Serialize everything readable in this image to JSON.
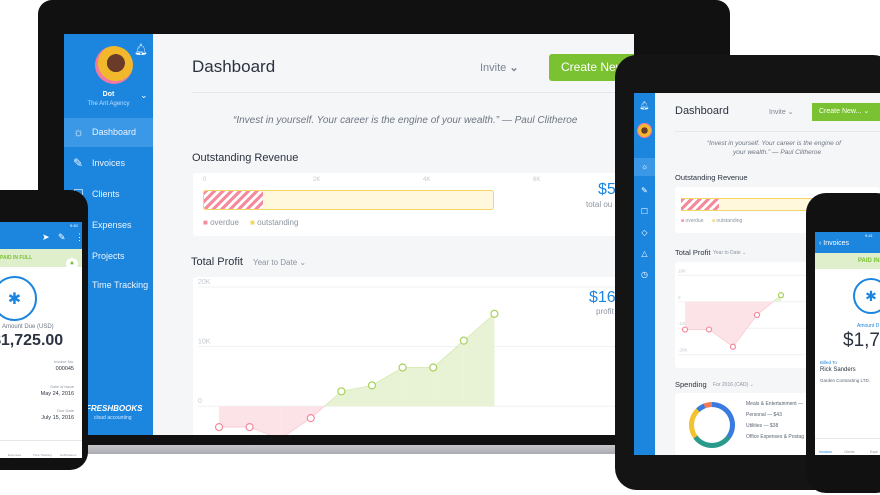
{
  "laptop": {
    "user": {
      "name": "Dot",
      "company": "The Ant Agency"
    },
    "sidebar": [
      {
        "label": "Dashboard",
        "icon": "sun-icon",
        "active": true
      },
      {
        "label": "Invoices",
        "icon": "invoice-icon"
      },
      {
        "label": "Clients",
        "icon": "clients-icon"
      },
      {
        "label": "Expenses",
        "icon": "expenses-icon"
      },
      {
        "label": "Projects",
        "icon": "projects-icon"
      },
      {
        "label": "Time Tracking",
        "icon": "timer-icon"
      }
    ],
    "logo": {
      "name": "FRESHBOOKS",
      "tagline": "cloud accounting"
    },
    "header": {
      "title": "Dashboard",
      "invite": "Invite",
      "create": "Create New"
    },
    "quote": "“Invest in yourself. Your career is the engine of your wealth.” — Paul Clitheroe",
    "revenue": {
      "title": "Outstanding Revenue",
      "ticks": [
        "0",
        "2K",
        "4K",
        "6K"
      ],
      "amount": "$5",
      "caption": "total ou",
      "legend": [
        "overdue",
        "outstanding"
      ],
      "overdue_k": 1.1,
      "outstanding_k": 5.3
    },
    "profit": {
      "title": "Total Profit",
      "range": "Year to Date",
      "amount": "$16",
      "caption": "profit"
    }
  },
  "chart_data": [
    {
      "type": "area",
      "title": "Total Profit",
      "yticks": [
        "20K",
        "10K",
        "0"
      ],
      "ylim": [
        -6,
        20
      ],
      "values": [
        -3.5,
        -3.5,
        -5.5,
        -2,
        2.5,
        3.5,
        6.5,
        6.5,
        11,
        15.5
      ],
      "colors": {
        "negative": "#f58a9c",
        "positive": "#a6d15a"
      }
    },
    {
      "type": "area",
      "title": "Total Profit",
      "yticks": [
        "10K",
        "0",
        "-10K",
        "-20K"
      ],
      "ylim": [
        -22,
        12
      ],
      "values": [
        -10.5,
        -10.5,
        -17,
        -5,
        2.5
      ],
      "colors": {
        "negative": "#f58a9c",
        "positive": "#a6d15a"
      }
    }
  ],
  "tablet": {
    "header": {
      "title": "Dashboard",
      "invite": "Invite",
      "create": "Create New..."
    },
    "quote": [
      "“Invest in yourself. Your career is the engine of",
      "your wealth.” — Paul Clitheroe"
    ],
    "revenue": {
      "title": "Outstanding Revenue",
      "legend": [
        "overdue",
        "outstanding"
      ]
    },
    "profit": {
      "title": "Total Profit",
      "range": "Year to Date"
    },
    "spending": {
      "title": "Spending",
      "range": "For 2016 (CAD)",
      "items": [
        "Meals & Entertainment —",
        "Personal — $43",
        "Utilities — $38",
        "Office Expenses & Postag"
      ]
    }
  },
  "left_phone": {
    "time": "5:40",
    "status": "PAID IN FULL",
    "amount_label": "Amount Due (USD)",
    "amount": "$1,725.00",
    "invoice_label": "Invoice No.",
    "invoice": "000045",
    "issue_label": "Date of Issue",
    "issue": "May 24, 2016",
    "due_label": "Due Date",
    "due": "July 15, 2016",
    "nav": [
      "Expenses",
      "Time Tracking",
      "Notifications"
    ]
  },
  "right_phone": {
    "time": "9:41",
    "back": "Invoices",
    "status": "PAID IN",
    "amount_label": "Amount D",
    "amount": "$1,72",
    "billed_label": "Billed To",
    "client": "Rick Sanders",
    "company": "Garden Contracting LTD.",
    "nav": [
      "Invoices",
      "Clients",
      "Expe"
    ]
  },
  "colors": {
    "brand": "#1c86df",
    "create": "#7ac231",
    "overdue": "#f58a9c",
    "outstanding": "#f5d565"
  }
}
